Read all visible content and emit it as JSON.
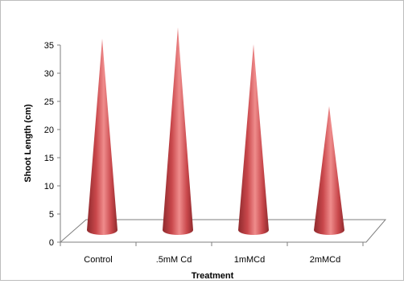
{
  "chart_data": {
    "type": "bar",
    "bar_shape": "cone",
    "title": "",
    "xlabel": "Treatment",
    "ylabel": "Shoot Length (cm)",
    "categories": [
      "Control",
      ".5mM Cd",
      "1mMCd",
      "2mMCd"
    ],
    "values": [
      34,
      36,
      33,
      22
    ],
    "ylim": [
      0,
      35
    ],
    "yticks": [
      0,
      5,
      10,
      15,
      20,
      25,
      30,
      35
    ],
    "grid": false,
    "legend": "none",
    "colors": {
      "bar_light": "#ef8c8c",
      "bar_mid": "#c9474b",
      "bar_dark": "#8e2a2d",
      "axis": "#7f7f7f"
    }
  }
}
